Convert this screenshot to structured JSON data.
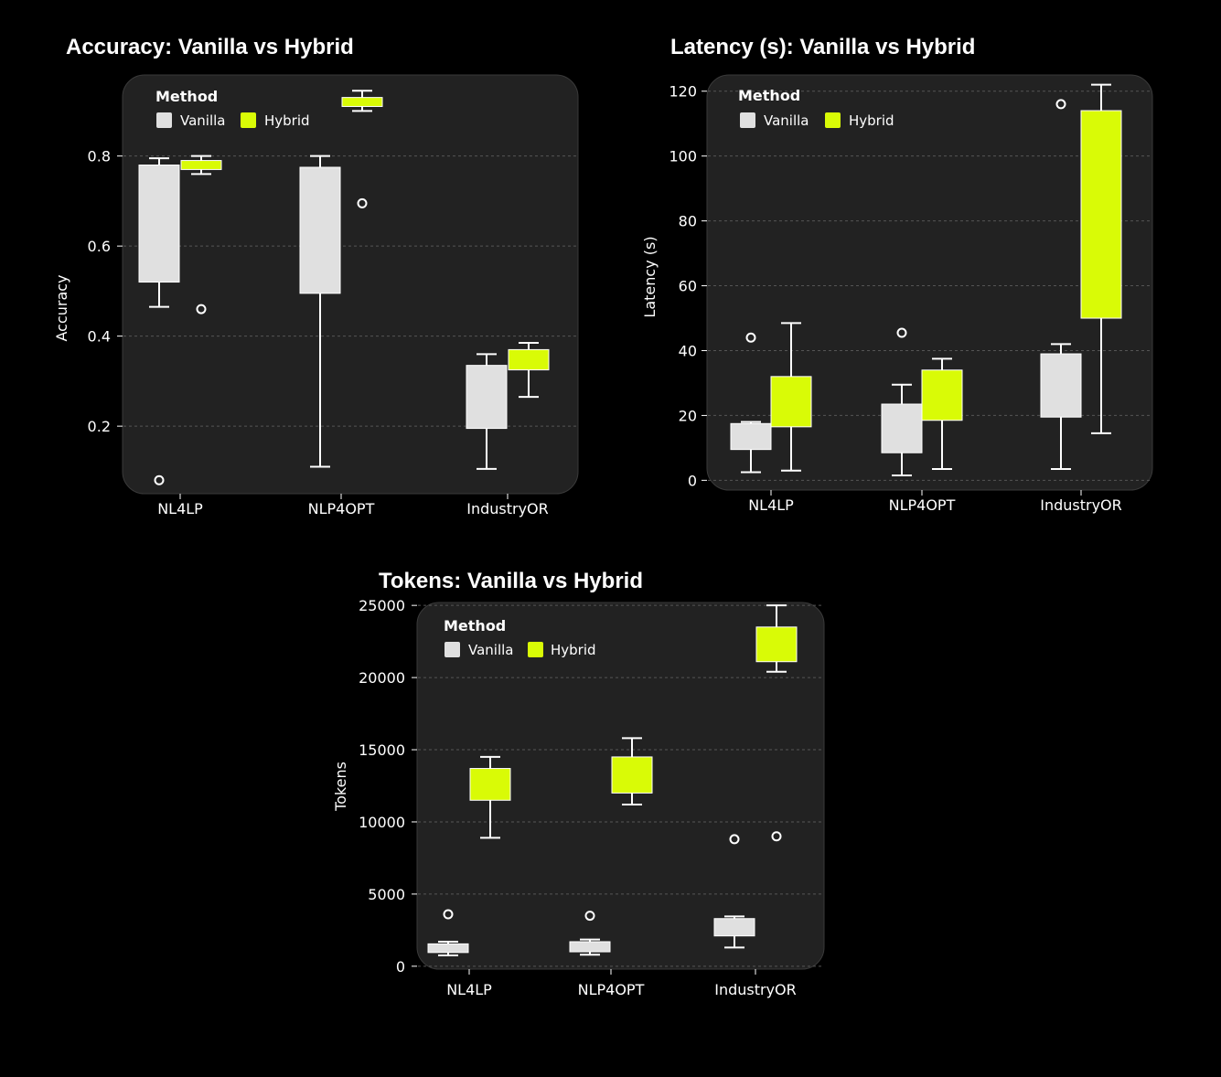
{
  "colors": {
    "background": "#000000",
    "panel": "#222222",
    "vanilla": "#e0e0e0",
    "hybrid": "#d9fb06",
    "whisker": "#ffffff",
    "grid": "#555555"
  },
  "legend": {
    "title": "Method",
    "items": [
      "Vanilla",
      "Hybrid"
    ]
  },
  "chart_data": [
    {
      "type": "box",
      "title": "Accuracy: Vanilla vs Hybrid",
      "ylabel": "Accuracy",
      "ylim": [
        0.05,
        0.98
      ],
      "yticks": [
        0.2,
        0.4,
        0.6,
        0.8
      ],
      "ytick_labels": [
        "0.2",
        "0.4",
        "0.6",
        "0.8"
      ],
      "categories": [
        "NL4LP",
        "NLP4OPT",
        "IndustryOR"
      ],
      "legend_position": "top-left",
      "grid": true,
      "series": [
        {
          "name": "Vanilla",
          "boxes": [
            {
              "whislo": 0.465,
              "q1": 0.52,
              "q3": 0.78,
              "whishi": 0.795,
              "fliers": [
                0.08
              ]
            },
            {
              "whislo": 0.11,
              "q1": 0.495,
              "q3": 0.775,
              "whishi": 0.8,
              "fliers": []
            },
            {
              "whislo": 0.105,
              "q1": 0.195,
              "q3": 0.335,
              "whishi": 0.36,
              "fliers": []
            }
          ]
        },
        {
          "name": "Hybrid",
          "boxes": [
            {
              "whislo": 0.76,
              "q1": 0.77,
              "q3": 0.79,
              "whishi": 0.8,
              "fliers": [
                0.46
              ]
            },
            {
              "whislo": 0.9,
              "q1": 0.91,
              "q3": 0.93,
              "whishi": 0.945,
              "fliers": [
                0.695
              ]
            },
            {
              "whislo": 0.265,
              "q1": 0.325,
              "q3": 0.37,
              "whishi": 0.385,
              "fliers": []
            }
          ]
        }
      ]
    },
    {
      "type": "box",
      "title": "Latency (s): Vanilla vs Hybrid",
      "ylabel": "Latency (s)",
      "ylim": [
        -3,
        125
      ],
      "yticks": [
        0,
        20,
        40,
        60,
        80,
        100,
        120
      ],
      "ytick_labels": [
        "0",
        "20",
        "40",
        "60",
        "80",
        "100",
        "120"
      ],
      "categories": [
        "NL4LP",
        "NLP4OPT",
        "IndustryOR"
      ],
      "legend_position": "top-left",
      "grid": true,
      "series": [
        {
          "name": "Vanilla",
          "boxes": [
            {
              "whislo": 2.5,
              "q1": 9.5,
              "q3": 17.5,
              "whishi": 18,
              "fliers": [
                44
              ]
            },
            {
              "whislo": 1.5,
              "q1": 8.5,
              "q3": 23.5,
              "whishi": 29.5,
              "fliers": [
                45.5
              ]
            },
            {
              "whislo": 3.5,
              "q1": 19.5,
              "q3": 39,
              "whishi": 42,
              "fliers": [
                116
              ]
            }
          ]
        },
        {
          "name": "Hybrid",
          "boxes": [
            {
              "whislo": 3,
              "q1": 16.5,
              "q3": 32,
              "whishi": 48.5,
              "fliers": []
            },
            {
              "whislo": 3.5,
              "q1": 18.5,
              "q3": 34,
              "whishi": 37.5,
              "fliers": []
            },
            {
              "whislo": 14.5,
              "q1": 50,
              "q3": 114,
              "whishi": 122,
              "fliers": []
            }
          ]
        }
      ]
    },
    {
      "type": "box",
      "title": "Tokens: Vanilla vs Hybrid",
      "ylabel": "Tokens",
      "ylim": [
        -200,
        25200
      ],
      "yticks": [
        0,
        5000,
        10000,
        15000,
        20000,
        25000
      ],
      "ytick_labels": [
        "0",
        "5000",
        "10000",
        "15000",
        "20000",
        "25000"
      ],
      "categories": [
        "NL4LP",
        "NLP4OPT",
        "IndustryOR"
      ],
      "legend_position": "top-left",
      "grid": true,
      "series": [
        {
          "name": "Vanilla",
          "boxes": [
            {
              "whislo": 750,
              "q1": 950,
              "q3": 1550,
              "whishi": 1700,
              "fliers": [
                3600
              ]
            },
            {
              "whislo": 800,
              "q1": 1000,
              "q3": 1700,
              "whishi": 1850,
              "fliers": [
                3500
              ]
            },
            {
              "whislo": 1300,
              "q1": 2100,
              "q3": 3300,
              "whishi": 3450,
              "fliers": [
                8800
              ]
            }
          ]
        },
        {
          "name": "Hybrid",
          "boxes": [
            {
              "whislo": 8900,
              "q1": 11500,
              "q3": 13700,
              "whishi": 14500,
              "fliers": []
            },
            {
              "whislo": 11200,
              "q1": 12000,
              "q3": 14500,
              "whishi": 15800,
              "fliers": []
            },
            {
              "whislo": 20400,
              "q1": 21100,
              "q3": 23500,
              "whishi": 25000,
              "fliers": [
                9000
              ]
            }
          ]
        }
      ]
    }
  ]
}
